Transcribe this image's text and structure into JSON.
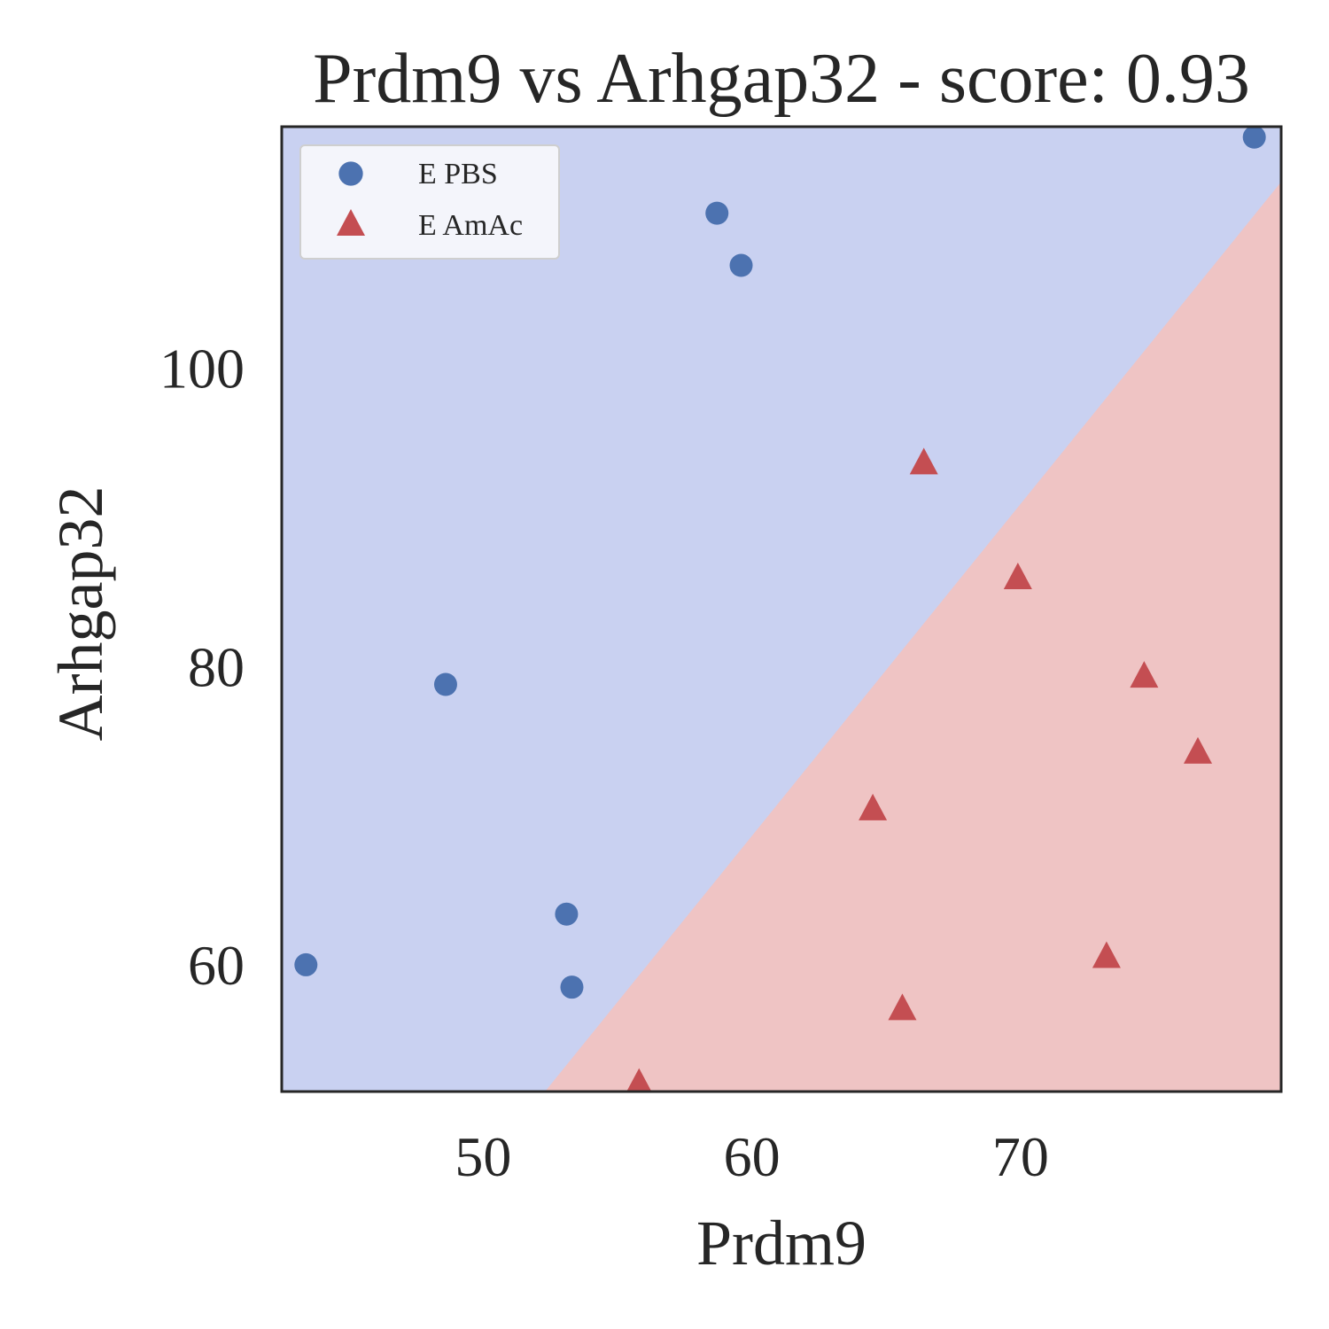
{
  "chart_data": {
    "type": "scatter",
    "title": "Prdm9 vs Arhgap32 - score: 0.93",
    "xlabel": "Prdm9",
    "ylabel": "Arhgap32",
    "xlim": [
      42.5,
      79.7
    ],
    "ylim": [
      51.5,
      116.2
    ],
    "xticks": [
      50,
      60,
      70
    ],
    "yticks": [
      60,
      80,
      100
    ],
    "grid": false,
    "legend_position": "top-left",
    "decision_boundary": {
      "points": [
        [
          52.3,
          51.5
        ],
        [
          79.7,
          112.5
        ]
      ],
      "upper_region_class": "E PBS",
      "lower_region_class": "E AmAc",
      "upper_region_color": "#c9d1f1",
      "lower_region_color": "#efc4c4"
    },
    "series": [
      {
        "name": "E PBS",
        "marker": "circle",
        "color": "#4c72b0",
        "points": [
          [
            43.4,
            60.0
          ],
          [
            48.6,
            78.8
          ],
          [
            53.1,
            63.4
          ],
          [
            53.3,
            58.5
          ],
          [
            58.7,
            110.4
          ],
          [
            59.6,
            106.9
          ],
          [
            78.7,
            115.5
          ]
        ]
      },
      {
        "name": "E AmAc",
        "marker": "triangle",
        "color": "#c44e52",
        "points": [
          [
            55.8,
            52.0
          ],
          [
            64.5,
            70.4
          ],
          [
            65.6,
            57.0
          ],
          [
            66.4,
            93.6
          ],
          [
            69.9,
            85.9
          ],
          [
            73.2,
            60.5
          ],
          [
            74.6,
            79.3
          ],
          [
            76.6,
            74.2
          ]
        ]
      }
    ]
  }
}
